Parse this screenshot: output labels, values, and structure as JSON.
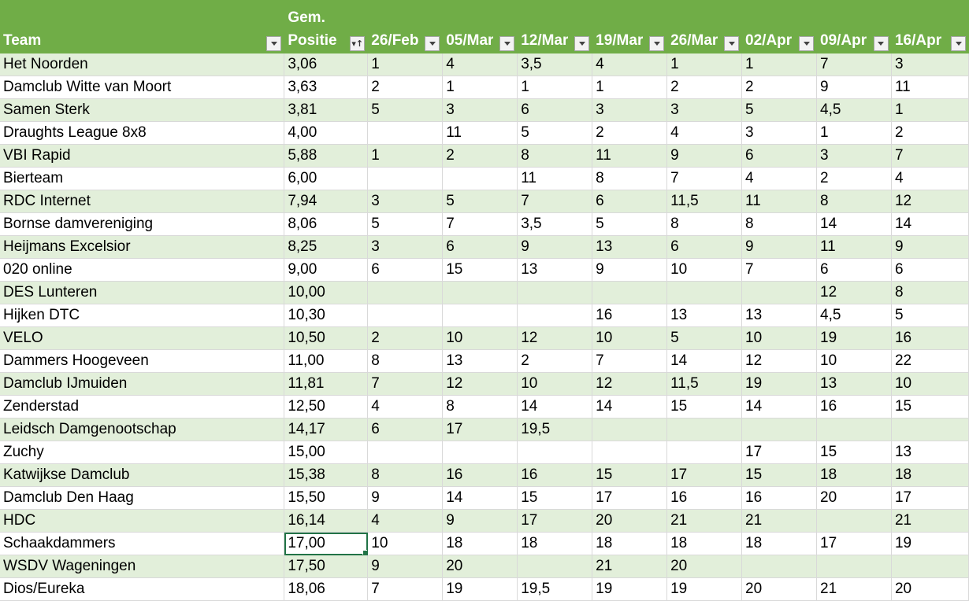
{
  "headers": [
    {
      "label": "Team",
      "filter": "dropdown"
    },
    {
      "label": "Gem. Positie",
      "filter": "sort-ascending"
    },
    {
      "label": "26/Feb",
      "filter": "dropdown"
    },
    {
      "label": "05/Mar",
      "filter": "dropdown"
    },
    {
      "label": "12/Mar",
      "filter": "dropdown"
    },
    {
      "label": "19/Mar",
      "filter": "dropdown"
    },
    {
      "label": "26/Mar",
      "filter": "dropdown"
    },
    {
      "label": "02/Apr",
      "filter": "dropdown"
    },
    {
      "label": "09/Apr",
      "filter": "dropdown"
    },
    {
      "label": "16/Apr",
      "filter": "dropdown"
    }
  ],
  "selected_cell": {
    "row": 21,
    "col": 1
  },
  "colors": {
    "header_bg": "#70ad47",
    "band": "#e2efda",
    "selection": "#217346"
  },
  "rows": [
    [
      "Het Noorden",
      "3,06",
      "1",
      "4",
      "3,5",
      "4",
      "1",
      "1",
      "7",
      "3"
    ],
    [
      "Damclub Witte van Moort",
      "3,63",
      "2",
      "1",
      "1",
      "1",
      "2",
      "2",
      "9",
      "11"
    ],
    [
      "Samen Sterk",
      "3,81",
      "5",
      "3",
      "6",
      "3",
      "3",
      "5",
      "4,5",
      "1"
    ],
    [
      "Draughts League 8x8",
      "4,00",
      "",
      "11",
      "5",
      "2",
      "4",
      "3",
      "1",
      "2"
    ],
    [
      "VBI Rapid",
      "5,88",
      "1",
      "2",
      "8",
      "11",
      "9",
      "6",
      "3",
      "7"
    ],
    [
      "Bierteam",
      "6,00",
      "",
      "",
      "11",
      "8",
      "7",
      "4",
      "2",
      "4"
    ],
    [
      "RDC Internet",
      "7,94",
      "3",
      "5",
      "7",
      "6",
      "11,5",
      "11",
      "8",
      "12"
    ],
    [
      "Bornse damvereniging",
      "8,06",
      "5",
      "7",
      "3,5",
      "5",
      "8",
      "8",
      "14",
      "14"
    ],
    [
      "Heijmans Excelsior",
      "8,25",
      "3",
      "6",
      "9",
      "13",
      "6",
      "9",
      "11",
      "9"
    ],
    [
      "020 online",
      "9,00",
      "6",
      "15",
      "13",
      "9",
      "10",
      "7",
      "6",
      "6"
    ],
    [
      "DES Lunteren",
      "10,00",
      "",
      "",
      "",
      "",
      "",
      "",
      "12",
      "8"
    ],
    [
      "Hijken DTC",
      "10,30",
      "",
      "",
      "",
      "16",
      "13",
      "13",
      "4,5",
      "5"
    ],
    [
      "VELO",
      "10,50",
      "2",
      "10",
      "12",
      "10",
      "5",
      "10",
      "19",
      "16"
    ],
    [
      "Dammers Hoogeveen",
      "11,00",
      "8",
      "13",
      "2",
      "7",
      "14",
      "12",
      "10",
      "22"
    ],
    [
      "Damclub IJmuiden",
      "11,81",
      "7",
      "12",
      "10",
      "12",
      "11,5",
      "19",
      "13",
      "10"
    ],
    [
      "Zenderstad",
      "12,50",
      "4",
      "8",
      "14",
      "14",
      "15",
      "14",
      "16",
      "15"
    ],
    [
      "Leidsch Damgenootschap",
      "14,17",
      "6",
      "17",
      "19,5",
      "",
      "",
      "",
      "",
      ""
    ],
    [
      "Zuchy",
      "15,00",
      "",
      "",
      "",
      "",
      "",
      "17",
      "15",
      "13"
    ],
    [
      "Katwijkse Damclub",
      "15,38",
      "8",
      "16",
      "16",
      "15",
      "17",
      "15",
      "18",
      "18"
    ],
    [
      "Damclub Den Haag",
      "15,50",
      "9",
      "14",
      "15",
      "17",
      "16",
      "16",
      "20",
      "17"
    ],
    [
      "HDC",
      "16,14",
      "4",
      "9",
      "17",
      "20",
      "21",
      "21",
      "",
      "21"
    ],
    [
      "Schaakdammers",
      "17,00",
      "10",
      "18",
      "18",
      "18",
      "18",
      "18",
      "17",
      "19"
    ],
    [
      "WSDV Wageningen",
      "17,50",
      "9",
      "20",
      "",
      "21",
      "20",
      "",
      "",
      ""
    ],
    [
      "Dios/Eureka",
      "18,06",
      "7",
      "19",
      "19,5",
      "19",
      "19",
      "20",
      "21",
      "20"
    ]
  ]
}
